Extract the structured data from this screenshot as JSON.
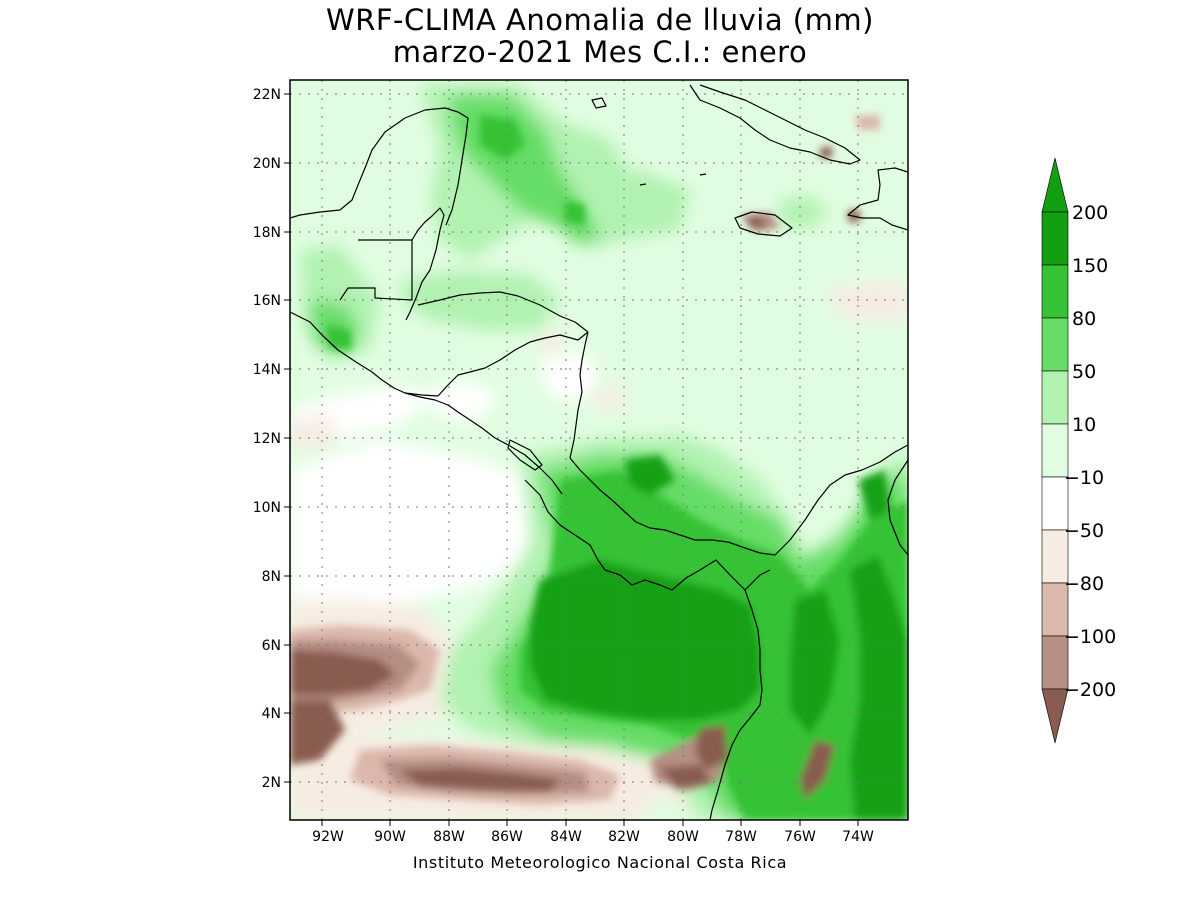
{
  "title": {
    "line1": "WRF-CLIMA Anomalia de lluvia (mm)",
    "line2": "marzo-2021 Mes C.I.: enero"
  },
  "footer": "Instituto Meteorologico Nacional Costa Rica",
  "axes": {
    "lat_labels": [
      "2N",
      "4N",
      "6N",
      "8N",
      "10N",
      "12N",
      "14N",
      "16N",
      "18N",
      "20N",
      "22N"
    ],
    "lat_values": [
      2,
      4,
      6,
      8,
      10,
      12,
      14,
      16,
      18,
      20,
      22
    ],
    "lon_labels": [
      "92W",
      "90W",
      "88W",
      "86W",
      "84W",
      "82W",
      "80W",
      "78W",
      "76W",
      "74W"
    ],
    "lon_values": [
      -92,
      -90,
      -88,
      -86,
      -84,
      -82,
      -80,
      -78,
      -76,
      -74
    ],
    "lon_range": [
      -93.1,
      -72.4
    ],
    "lat_range": [
      0.9,
      22.4
    ],
    "grid": "dotted"
  },
  "colorbar": {
    "labels": [
      "200",
      "150",
      "80",
      "50",
      "10",
      "−10",
      "−50",
      "−80",
      "−100",
      "−200"
    ],
    "colors": [
      "#12a012",
      "#35c235",
      "#66dd66",
      "#b1f2b1",
      "#e1fde1",
      "#ffffff",
      "#f7ece2",
      "#dbb8ac",
      "#b58e84",
      "#8a5b50",
      "#5e3a30"
    ]
  },
  "colors": {
    "land_outline": "#000000",
    "frame": "#000000",
    "background": "#ffffff"
  }
}
